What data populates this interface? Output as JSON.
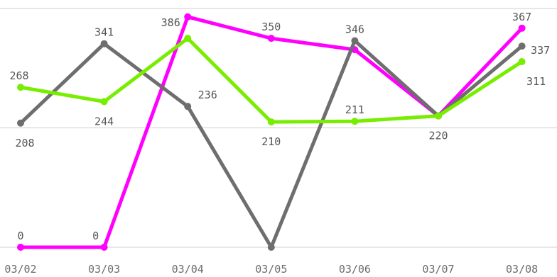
{
  "chart_data": {
    "type": "line",
    "x": [
      "03/02",
      "03/03",
      "03/04",
      "03/05",
      "03/06",
      "03/07",
      "03/08"
    ],
    "ylim": [
      0,
      400
    ],
    "grid": true,
    "legend": "none",
    "series": [
      {
        "color": "#ff00ff",
        "values": [
          0,
          0,
          386,
          350,
          331,
          220,
          367
        ],
        "labels": [
          "0",
          "0",
          "386",
          "350",
          "",
          "",
          "367"
        ]
      },
      {
        "color": "#6e6e6e",
        "values": [
          208,
          341,
          236,
          0,
          346,
          220,
          337
        ],
        "labels": [
          "208",
          "341",
          "236",
          "",
          "346",
          "220",
          "337"
        ]
      },
      {
        "color": "#77ee00",
        "values": [
          268,
          244,
          350,
          210,
          211,
          220,
          311
        ],
        "labels": [
          "268",
          "244",
          "",
          "210",
          "211",
          "",
          "311"
        ]
      }
    ]
  }
}
